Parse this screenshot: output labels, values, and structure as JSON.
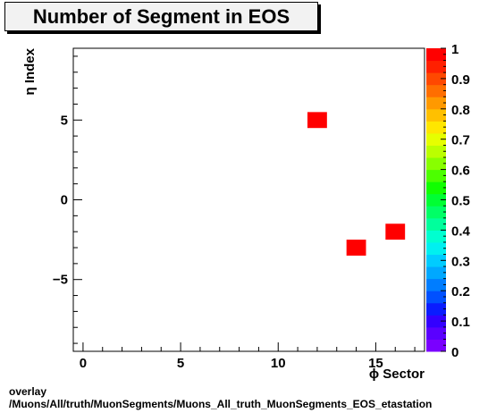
{
  "title": "Number of Segment in EOS",
  "footer": {
    "line1": "overlay",
    "line2": "/Muons/All/truth/MuonSegments/Muons_All_truth_MuonSegments_EOS_etastation"
  },
  "chart_data": {
    "type": "heatmap",
    "title": "Number of Segment in EOS",
    "xlabel": "ϕ Sector",
    "ylabel": "η Index",
    "xlim": [
      -0.5,
      17.5
    ],
    "ylim": [
      -9.5,
      9.5
    ],
    "x_ticks": [
      0,
      5,
      10,
      15
    ],
    "y_ticks": [
      -5,
      0,
      5
    ],
    "cells": [
      {
        "x": 12,
        "y": 5,
        "value": 1
      },
      {
        "x": 14,
        "y": -3,
        "value": 1
      },
      {
        "x": 16,
        "y": -2,
        "value": 1
      }
    ],
    "colorbar": {
      "min": 0,
      "max": 1,
      "tick_labels": [
        "0",
        "0.1",
        "0.2",
        "0.3",
        "0.4",
        "0.5",
        "0.6",
        "0.7",
        "0.8",
        "0.9",
        "1"
      ],
      "colors": [
        "#7a00ff",
        "#5a00ff",
        "#3300ff",
        "#0a1cff",
        "#0050ff",
        "#007dff",
        "#00a8ff",
        "#00ccff",
        "#00f0f0",
        "#00ffd0",
        "#00ff9c",
        "#00ff66",
        "#00ff33",
        "#11ff00",
        "#4cff00",
        "#88ff00",
        "#bbff00",
        "#e6ff00",
        "#ffe600",
        "#ffc000",
        "#ff9900",
        "#ff6e00",
        "#ff4800",
        "#ff2000",
        "#ff0000"
      ]
    }
  }
}
